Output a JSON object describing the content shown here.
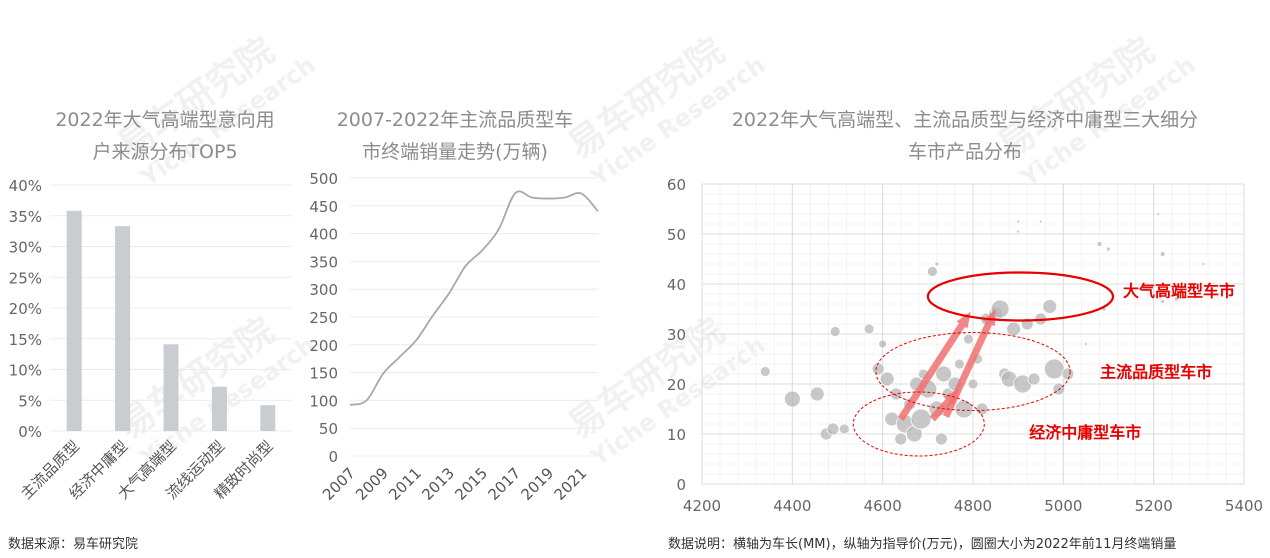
{
  "watermark": {
    "cn": "易车研究院",
    "en": "Yiche Research"
  },
  "chart_data": [
    {
      "type": "bar",
      "title": "2022年大气高端型意向用户来源分布TOP5",
      "title_lines": [
        "2022年大气高端型意向用",
        "户来源分布TOP5"
      ],
      "categories": [
        "主流品质型",
        "经济中庸型",
        "大气高端型",
        "流线运动型",
        "精致时尚型"
      ],
      "values": [
        35.8,
        33.3,
        14.1,
        7.2,
        4.2
      ],
      "yticks": [
        "0%",
        "5%",
        "10%",
        "15%",
        "20%",
        "25%",
        "30%",
        "35%",
        "40%"
      ],
      "ylim": [
        0,
        40
      ],
      "unit": "%",
      "grid": true,
      "color": "#c9ccd0"
    },
    {
      "type": "line",
      "title": "2007-2022年主流品质型车市终端销量走势(万辆)",
      "title_lines": [
        "2007-2022年主流品质型车",
        "市终端销量走势(万辆)"
      ],
      "x": [
        2007,
        2008,
        2009,
        2010,
        2011,
        2012,
        2013,
        2014,
        2015,
        2016,
        2017,
        2018,
        2019,
        2020,
        2021,
        2022
      ],
      "y": [
        92,
        100,
        148,
        178,
        208,
        252,
        293,
        342,
        370,
        408,
        473,
        465,
        463,
        465,
        472,
        440
      ],
      "xticks": [
        "2007",
        "2009",
        "2011",
        "2013",
        "2015",
        "2017",
        "2019",
        "2021"
      ],
      "yticks": [
        "0",
        "50",
        "100",
        "150",
        "200",
        "250",
        "300",
        "350",
        "400",
        "450",
        "500"
      ],
      "ylim": [
        0,
        500
      ],
      "grid": true,
      "color": "#a8a8a8"
    },
    {
      "type": "scatter",
      "title": "2022年大气高端型、主流品质型与经济中庸型三大细分车市产品分布",
      "title_lines": [
        "2022年大气高端型、主流品质型与经济中庸型三大细分",
        "车市产品分布"
      ],
      "xlim": [
        4200,
        5400
      ],
      "ylim": [
        0,
        60
      ],
      "xticks": [
        "4200",
        "4400",
        "4600",
        "4800",
        "5000",
        "5200",
        "5400"
      ],
      "yticks": [
        "0",
        "10",
        "20",
        "30",
        "40",
        "50",
        "60"
      ],
      "grid": true,
      "point_color": "#b5b5b5",
      "highlight_color": "#e60000",
      "points": [
        {
          "x": 4340,
          "y": 22.5,
          "s": 5
        },
        {
          "x": 4400,
          "y": 17,
          "s": 8
        },
        {
          "x": 4455,
          "y": 18,
          "s": 7
        },
        {
          "x": 4475,
          "y": 10,
          "s": 6
        },
        {
          "x": 4490,
          "y": 11,
          "s": 6
        },
        {
          "x": 4515,
          "y": 11,
          "s": 5
        },
        {
          "x": 4495,
          "y": 30.5,
          "s": 5
        },
        {
          "x": 4570,
          "y": 31,
          "s": 5
        },
        {
          "x": 4590,
          "y": 23,
          "s": 6
        },
        {
          "x": 4600,
          "y": 28,
          "s": 4
        },
        {
          "x": 4610,
          "y": 21,
          "s": 7
        },
        {
          "x": 4620,
          "y": 13,
          "s": 7
        },
        {
          "x": 4630,
          "y": 18,
          "s": 6
        },
        {
          "x": 4640,
          "y": 9,
          "s": 6
        },
        {
          "x": 4650,
          "y": 12,
          "s": 9
        },
        {
          "x": 4660,
          "y": 16,
          "s": 6
        },
        {
          "x": 4670,
          "y": 10,
          "s": 8
        },
        {
          "x": 4675,
          "y": 20,
          "s": 7
        },
        {
          "x": 4685,
          "y": 13,
          "s": 10
        },
        {
          "x": 4690,
          "y": 22,
          "s": 5
        },
        {
          "x": 4700,
          "y": 19,
          "s": 9
        },
        {
          "x": 4710,
          "y": 42.5,
          "s": 5
        },
        {
          "x": 4720,
          "y": 15,
          "s": 8
        },
        {
          "x": 4730,
          "y": 9,
          "s": 6
        },
        {
          "x": 4735,
          "y": 22,
          "s": 8
        },
        {
          "x": 4745,
          "y": 18,
          "s": 6
        },
        {
          "x": 4760,
          "y": 20,
          "s": 7
        },
        {
          "x": 4770,
          "y": 24,
          "s": 5
        },
        {
          "x": 4780,
          "y": 15,
          "s": 9
        },
        {
          "x": 4790,
          "y": 29,
          "s": 5
        },
        {
          "x": 4800,
          "y": 20,
          "s": 5
        },
        {
          "x": 4810,
          "y": 25,
          "s": 5
        },
        {
          "x": 4820,
          "y": 15,
          "s": 6
        },
        {
          "x": 4830,
          "y": 33,
          "s": 6
        },
        {
          "x": 4850,
          "y": 34,
          "s": 7
        },
        {
          "x": 4860,
          "y": 35,
          "s": 9
        },
        {
          "x": 4870,
          "y": 22,
          "s": 6
        },
        {
          "x": 4880,
          "y": 21,
          "s": 8
        },
        {
          "x": 4890,
          "y": 31,
          "s": 7
        },
        {
          "x": 4910,
          "y": 20,
          "s": 9
        },
        {
          "x": 4920,
          "y": 32,
          "s": 6
        },
        {
          "x": 4935,
          "y": 21,
          "s": 6
        },
        {
          "x": 4950,
          "y": 33,
          "s": 6
        },
        {
          "x": 4970,
          "y": 35.5,
          "s": 7
        },
        {
          "x": 4980,
          "y": 23,
          "s": 10
        },
        {
          "x": 4990,
          "y": 19,
          "s": 6
        },
        {
          "x": 5010,
          "y": 22,
          "s": 6
        },
        {
          "x": 4720,
          "y": 44,
          "s": 2
        },
        {
          "x": 4900,
          "y": 52.5,
          "s": 1.5
        },
        {
          "x": 4950,
          "y": 52.5,
          "s": 1.5
        },
        {
          "x": 5080,
          "y": 48,
          "s": 2.5
        },
        {
          "x": 5100,
          "y": 47,
          "s": 2
        },
        {
          "x": 5220,
          "y": 46,
          "s": 2.5
        },
        {
          "x": 5210,
          "y": 54,
          "s": 1.5
        },
        {
          "x": 5310,
          "y": 44,
          "s": 1.5
        },
        {
          "x": 5220,
          "y": 36.5,
          "s": 2
        },
        {
          "x": 5250,
          "y": 37,
          "s": 2
        },
        {
          "x": 5090,
          "y": 35,
          "s": 2
        },
        {
          "x": 5050,
          "y": 28,
          "s": 1.5
        },
        {
          "x": 4900,
          "y": 50.5,
          "s": 1.5
        }
      ],
      "segments": [
        {
          "name": "大气高端型车市",
          "cx": 4905,
          "cy": 37.5,
          "rx": 205,
          "ry": 4.8
        },
        {
          "name": "主流品质型车市",
          "cx": 4800,
          "cy": 22.5,
          "rx": 215,
          "ry": 7.8
        },
        {
          "name": "经济中庸型车市",
          "cx": 4680,
          "cy": 12,
          "rx": 145,
          "ry": 6.4
        }
      ],
      "arrows": [
        {
          "from": [
            4640,
            13
          ],
          "to": [
            4795,
            34.5
          ]
        },
        {
          "from": [
            4740,
            13.5
          ],
          "to": [
            4850,
            35
          ]
        },
        {
          "from": [
            4710,
            13
          ],
          "to": [
            4770,
            19
          ]
        }
      ]
    }
  ],
  "notes": {
    "left": "数据来源：易车研究院",
    "right": "数据说明：横轴为车长(MM)，纵轴为指导价(万元)，圆圈大小为2022年前11月终端销量"
  }
}
